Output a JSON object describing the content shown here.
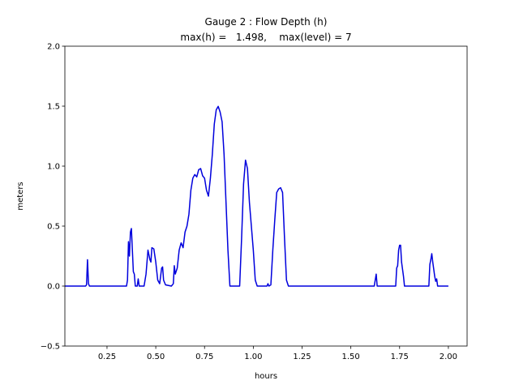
{
  "chart_data": {
    "type": "line",
    "title": "Gauge 2 : Flow Depth (h)",
    "subtitle": "max(h) =   1.498,    max(level) = 7",
    "x_label": "hours",
    "y_label": "meters",
    "color": "#0000dd",
    "xlim": [
      0.034,
      2.096
    ],
    "ylim": [
      -0.5,
      2.0
    ],
    "xticks": [
      {
        "value": 0.25,
        "label": "0.25"
      },
      {
        "value": 0.5,
        "label": "0.50"
      },
      {
        "value": 0.75,
        "label": "0.75"
      },
      {
        "value": 1.0,
        "label": "1.00"
      },
      {
        "value": 1.25,
        "label": "1.25"
      },
      {
        "value": 1.5,
        "label": "1.50"
      },
      {
        "value": 1.75,
        "label": "1.75"
      },
      {
        "value": 2.0,
        "label": "2.00"
      }
    ],
    "yticks": [
      {
        "value": -0.5,
        "label": "−0.5"
      },
      {
        "value": 0,
        "label": "0.0"
      },
      {
        "value": 0.5,
        "label": "0.5"
      },
      {
        "value": 1.0,
        "label": "1.0"
      },
      {
        "value": 1.5,
        "label": "1.5"
      },
      {
        "value": 2.0,
        "label": "2.0"
      }
    ],
    "x": [
      0.034,
      0.14,
      0.145,
      0.15,
      0.155,
      0.16,
      0.35,
      0.355,
      0.36,
      0.365,
      0.37,
      0.375,
      0.38,
      0.385,
      0.39,
      0.395,
      0.405,
      0.41,
      0.415,
      0.44,
      0.45,
      0.46,
      0.47,
      0.475,
      0.48,
      0.49,
      0.5,
      0.51,
      0.52,
      0.53,
      0.535,
      0.54,
      0.55,
      0.58,
      0.59,
      0.595,
      0.6,
      0.61,
      0.62,
      0.63,
      0.64,
      0.65,
      0.66,
      0.67,
      0.68,
      0.69,
      0.7,
      0.71,
      0.72,
      0.73,
      0.74,
      0.75,
      0.76,
      0.77,
      0.78,
      0.79,
      0.8,
      0.81,
      0.82,
      0.83,
      0.84,
      0.85,
      0.86,
      0.87,
      0.88,
      0.93,
      0.94,
      0.95,
      0.96,
      0.97,
      0.98,
      0.99,
      1.0,
      1.01,
      1.02,
      1.07,
      1.075,
      1.08,
      1.09,
      1.1,
      1.11,
      1.12,
      1.13,
      1.14,
      1.15,
      1.16,
      1.17,
      1.18,
      1.62,
      1.625,
      1.63,
      1.635,
      1.73,
      1.735,
      1.74,
      1.745,
      1.75,
      1.755,
      1.76,
      1.77,
      1.775,
      1.9,
      1.905,
      1.91,
      1.915,
      1.92,
      1.93,
      1.935,
      1.94,
      1.945,
      2.0
    ],
    "values": [
      0,
      0,
      0.01,
      0.22,
      0.02,
      0,
      0,
      0.05,
      0.37,
      0.25,
      0.45,
      0.48,
      0.3,
      0.12,
      0.1,
      0,
      0,
      0.06,
      0,
      0,
      0.1,
      0.3,
      0.22,
      0.2,
      0.32,
      0.31,
      0.2,
      0.05,
      0.02,
      0.15,
      0.16,
      0.05,
      0.01,
      0,
      0.02,
      0.17,
      0.1,
      0.15,
      0.3,
      0.36,
      0.32,
      0.45,
      0.5,
      0.6,
      0.8,
      0.9,
      0.93,
      0.91,
      0.97,
      0.98,
      0.92,
      0.9,
      0.8,
      0.75,
      0.9,
      1.1,
      1.35,
      1.47,
      1.498,
      1.45,
      1.37,
      1.1,
      0.7,
      0.3,
      0,
      0,
      0.4,
      0.85,
      1.05,
      0.98,
      0.7,
      0.5,
      0.3,
      0.05,
      0,
      0,
      0.02,
      0,
      0.01,
      0.3,
      0.55,
      0.78,
      0.81,
      0.82,
      0.78,
      0.4,
      0.05,
      0,
      0,
      0.05,
      0.1,
      0,
      0,
      0.15,
      0.17,
      0.3,
      0.34,
      0.34,
      0.2,
      0.08,
      0,
      0,
      0.18,
      0.22,
      0.27,
      0.2,
      0.08,
      0.04,
      0.06,
      0,
      0
    ]
  }
}
